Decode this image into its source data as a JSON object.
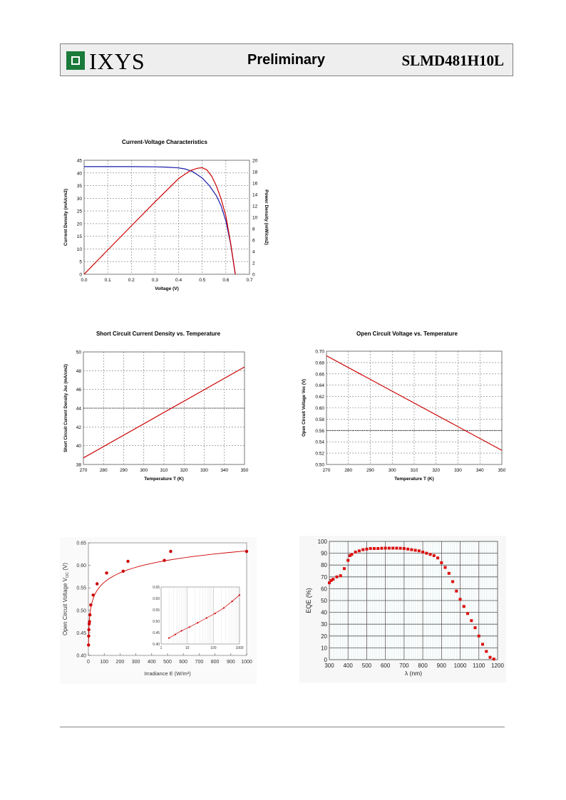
{
  "header": {
    "brand": "IXYS",
    "status": "Preliminary",
    "part_number": "SLMD481H10L"
  },
  "colors": {
    "header_bg": "#eeeeee",
    "logo_green": "#1a7a3a",
    "red": "#cc0000",
    "blue": "#1a1aaa"
  },
  "chart_data": [
    {
      "id": "iv",
      "type": "line",
      "title": "Current-Voltage Characteristics",
      "xlabel": "Voltage (V)",
      "ylabel": "Current Density (mA/cm2)",
      "y2label": "Power Density (mW/cm2)",
      "xlim": [
        0,
        0.7
      ],
      "ylim": [
        0,
        45
      ],
      "y2lim": [
        0,
        20
      ],
      "xticks": [
        "0.0",
        "0.1",
        "0.2",
        "0.3",
        "0.4",
        "0.5",
        "0.6",
        "0.7"
      ],
      "yticks": [
        "0",
        "5",
        "10",
        "15",
        "20",
        "25",
        "30",
        "35",
        "40",
        "45"
      ],
      "y2ticks": [
        "0",
        "2",
        "4",
        "6",
        "8",
        "10",
        "12",
        "14",
        "16",
        "18",
        "20"
      ],
      "grid": true,
      "series": [
        {
          "axis": "left",
          "color": "#1a1aaa",
          "x": [
            0,
            0.1,
            0.2,
            0.3,
            0.35,
            0.4,
            0.43,
            0.46,
            0.5,
            0.53,
            0.56,
            0.58,
            0.6,
            0.62,
            0.63,
            0.64
          ],
          "y": [
            42.5,
            42.5,
            42.5,
            42.4,
            42.3,
            42,
            41.5,
            40.5,
            38,
            35,
            31,
            27,
            21,
            12,
            6,
            0
          ]
        },
        {
          "axis": "right",
          "color": "#cc0000",
          "x": [
            0,
            0.1,
            0.2,
            0.3,
            0.4,
            0.45,
            0.48,
            0.5,
            0.52,
            0.54,
            0.56,
            0.58,
            0.6,
            0.62,
            0.64
          ],
          "y": [
            0,
            4.25,
            8.5,
            12.7,
            16.8,
            18.2,
            18.6,
            18.7,
            18.3,
            17.2,
            15.5,
            13.2,
            10.2,
            5.5,
            0
          ]
        }
      ]
    },
    {
      "id": "jsc",
      "type": "line",
      "title": "Short Circuit Current Density vs. Temperature",
      "xlabel": "Temperature T (K)",
      "ylabel": "Short Circuit Current Density Jsc (mA/cm2)",
      "xlim": [
        270,
        350
      ],
      "ylim": [
        38,
        50
      ],
      "xticks": [
        "270",
        "280",
        "290",
        "300",
        "310",
        "320",
        "330",
        "340",
        "350"
      ],
      "yticks": [
        "38",
        "40",
        "42",
        "44",
        "46",
        "48",
        "50"
      ],
      "grid": true,
      "reference_y": 44,
      "series": [
        {
          "color": "#cc0000",
          "x": [
            270,
            350
          ],
          "y": [
            38.7,
            48.4
          ]
        }
      ]
    },
    {
      "id": "voc",
      "type": "line",
      "title": "Open Circuit Voltage vs. Temperature",
      "xlabel": "Temperature T (K)",
      "ylabel": "Open Circuit Voltage Voc (V)",
      "xlim": [
        270,
        350
      ],
      "ylim": [
        0.5,
        0.7
      ],
      "xticks": [
        "270",
        "280",
        "290",
        "300",
        "310",
        "320",
        "330",
        "340",
        "350"
      ],
      "yticks": [
        "0.50",
        "0.52",
        "0.54",
        "0.56",
        "0.58",
        "0.60",
        "0.62",
        "0.64",
        "0.66",
        "0.68",
        "0.70"
      ],
      "grid": true,
      "reference_y": 0.56,
      "series": [
        {
          "color": "#cc0000",
          "x": [
            270,
            350
          ],
          "y": [
            0.692,
            0.525
          ]
        }
      ]
    },
    {
      "id": "irr",
      "type": "scatter",
      "xlabel": "Irradiance E (W/m²)",
      "ylabel": "Open Circuit Voltage V",
      "ylabel_sub": "OC",
      "ylabel_unit": " (V)",
      "xlim": [
        0,
        1000
      ],
      "ylim": [
        0.4,
        0.65
      ],
      "xticks": [
        "0",
        "100",
        "200",
        "300",
        "400",
        "500",
        "600",
        "700",
        "800",
        "900",
        "1000"
      ],
      "yticks": [
        "0.40",
        "0.45",
        "0.50",
        "0.55",
        "0.60",
        "0.65"
      ],
      "points": {
        "x": [
          1,
          2,
          3,
          5,
          7,
          10,
          15,
          30,
          55,
          115,
          220,
          250,
          480,
          520,
          1000
        ],
        "y": [
          0.423,
          0.443,
          0.457,
          0.47,
          0.475,
          0.49,
          0.512,
          0.534,
          0.559,
          0.583,
          0.587,
          0.609,
          0.611,
          0.631,
          0.631
        ]
      },
      "inset": {
        "type": "scatter",
        "scale": "log",
        "xlim": [
          1,
          1000
        ],
        "ylim": [
          0.4,
          0.65
        ],
        "xticks": [
          "1",
          "10",
          "100",
          "1000"
        ],
        "yticks": [
          "0.40",
          "0.45",
          "0.50",
          "0.55",
          "0.60",
          "0.65"
        ],
        "points": {
          "x": [
            2,
            3.5,
            6,
            12,
            25,
            55,
            115,
            250,
            520,
            1000
          ],
          "y": [
            0.426,
            0.442,
            0.458,
            0.474,
            0.493,
            0.514,
            0.534,
            0.558,
            0.587,
            0.615
          ]
        }
      }
    },
    {
      "id": "eqe",
      "type": "scatter",
      "xlabel": "λ (nm)",
      "ylabel": "EQE (%)",
      "xlim": [
        300,
        1200
      ],
      "ylim": [
        0,
        100
      ],
      "xticks": [
        "300",
        "400",
        "500",
        "600",
        "700",
        "800",
        "900",
        "1000",
        "1100",
        "1200"
      ],
      "yticks": [
        "0",
        "10",
        "20",
        "30",
        "40",
        "50",
        "60",
        "70",
        "80",
        "90",
        "100"
      ],
      "grid": true,
      "points": {
        "x": [
          300,
          310,
          320,
          340,
          360,
          380,
          400,
          410,
          420,
          440,
          460,
          480,
          500,
          520,
          540,
          560,
          580,
          600,
          620,
          640,
          660,
          680,
          700,
          720,
          740,
          760,
          780,
          800,
          820,
          840,
          860,
          880,
          900,
          920,
          940,
          960,
          980,
          1000,
          1020,
          1040,
          1060,
          1080,
          1100,
          1120,
          1140,
          1160,
          1180
        ],
        "y": [
          65,
          67,
          68,
          70,
          71,
          77,
          84,
          88,
          89,
          91,
          92,
          93,
          93.5,
          94,
          94,
          94,
          94.2,
          94.3,
          94.3,
          94.3,
          94.3,
          94.2,
          94,
          93.5,
          93,
          92.5,
          92,
          91,
          90,
          89,
          88,
          86,
          82,
          78,
          73,
          66,
          58,
          51,
          45,
          39,
          33,
          27,
          20,
          13,
          7,
          2,
          0.5
        ]
      }
    }
  ]
}
